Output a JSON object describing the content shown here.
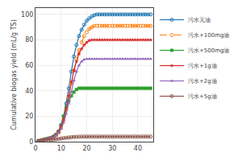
{
  "chart_data": {
    "type": "line",
    "ylabel": "Cumulative biogas yield (mL/g TS)",
    "xlim": [
      0,
      46
    ],
    "ylim": [
      0,
      105
    ],
    "xticks": [
      0,
      10,
      20,
      30,
      40
    ],
    "yticks": [
      0,
      20,
      40,
      60,
      80,
      100
    ],
    "legend": "right",
    "x": [
      1,
      2,
      3,
      4,
      5,
      6,
      7,
      8,
      9,
      10,
      11,
      12,
      13,
      14,
      15,
      16,
      17,
      18,
      19,
      20,
      21,
      22,
      23,
      24,
      25,
      26,
      27,
      28,
      29,
      30,
      31,
      32,
      33,
      34,
      35,
      36,
      37,
      38,
      39,
      40,
      41,
      42,
      43,
      44,
      45
    ],
    "series": [
      {
        "name": "污水无油",
        "marker": "circle-open",
        "line_style": "solid",
        "values": [
          0.5,
          1,
          1.5,
          2,
          2.5,
          3,
          4,
          5.5,
          8,
          13,
          20,
          30,
          42,
          55,
          67,
          76,
          83,
          88,
          92,
          95,
          97,
          98.5,
          99.5,
          100,
          100,
          100,
          100,
          100,
          100,
          100,
          100,
          100,
          100,
          100,
          100,
          100,
          100,
          100,
          100,
          100,
          100,
          100,
          100,
          100,
          100
        ]
      },
      {
        "name": "污水+100mg油",
        "marker": "circle-open",
        "line_style": "dash",
        "values": [
          0.5,
          1,
          1.5,
          2,
          2.5,
          3,
          3.5,
          5,
          7,
          11,
          17,
          25,
          35,
          46,
          56,
          65,
          72,
          78,
          83,
          86,
          88.5,
          90,
          91,
          91,
          91,
          91,
          91,
          91,
          91,
          91,
          91,
          91,
          91,
          91,
          91,
          91,
          91,
          91,
          91,
          91,
          91,
          91,
          91,
          91,
          91
        ]
      },
      {
        "name": "污水+500mg油",
        "marker": "square",
        "line_style": "solid",
        "values": [
          0.5,
          1,
          1.5,
          2,
          2.5,
          3,
          4,
          5.5,
          8,
          13,
          20,
          27,
          32,
          36,
          39,
          41,
          42,
          42,
          42,
          42,
          42,
          42,
          42,
          42,
          42,
          42,
          42,
          42,
          42,
          42,
          42,
          42,
          42,
          42,
          42,
          42,
          42,
          42,
          42,
          42,
          42,
          42,
          42,
          42,
          42
        ]
      },
      {
        "name": "污水+1g油",
        "marker": "star",
        "line_style": "solid",
        "values": [
          0.5,
          1,
          1.5,
          2,
          2.5,
          3,
          3.8,
          5.5,
          8,
          12,
          18,
          26,
          36,
          47,
          56,
          63,
          69,
          73,
          76,
          78,
          79.5,
          80,
          80,
          80,
          80,
          80,
          80,
          80,
          80,
          80,
          80,
          80,
          80,
          80,
          80,
          80,
          80,
          80,
          80,
          80,
          80,
          80,
          80,
          80,
          80
        ]
      },
      {
        "name": "污水+2g油",
        "marker": "triangle-up",
        "line_style": "solid",
        "values": [
          0.5,
          1,
          1.5,
          2,
          2.5,
          3,
          3.5,
          5,
          7,
          10,
          15,
          22,
          30,
          39,
          48,
          55,
          60,
          63,
          64.5,
          65,
          65,
          65,
          65,
          65,
          65,
          65,
          65,
          65,
          65,
          65,
          65,
          65,
          65,
          65,
          65,
          65,
          65,
          65,
          65,
          65,
          65,
          65,
          65,
          65,
          65
        ]
      },
      {
        "name": "污水+5g油",
        "marker": "circle-open",
        "line_style": "solid",
        "values": [
          0.3,
          0.5,
          0.7,
          0.9,
          1.1,
          1.3,
          1.6,
          1.9,
          2.2,
          2.5,
          2.8,
          3.1,
          3.3,
          3.5,
          3.7,
          3.8,
          3.9,
          4,
          4,
          4,
          4,
          4,
          4,
          4,
          4,
          4,
          4,
          4,
          4,
          4,
          4,
          4,
          4,
          4,
          4,
          4,
          4,
          4,
          4,
          4,
          4,
          4,
          4,
          4,
          4
        ]
      }
    ]
  }
}
